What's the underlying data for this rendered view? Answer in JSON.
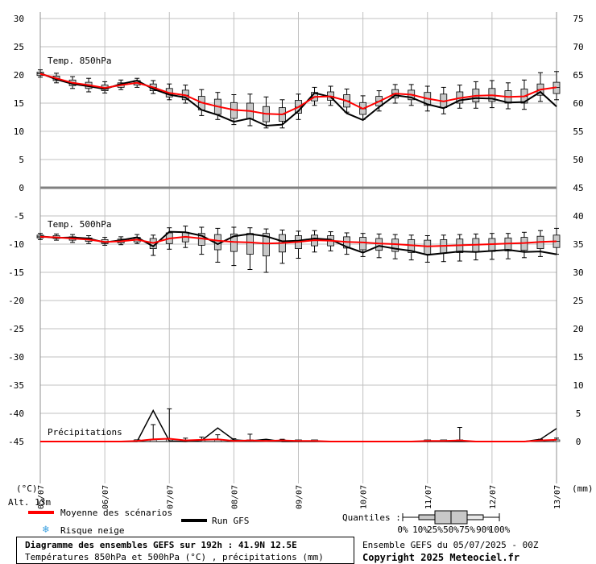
{
  "chart_data": {
    "type": "boxplot",
    "dates": [
      "05/07",
      "06/07",
      "07/07",
      "08/07",
      "09/07",
      "10/07",
      "11/07",
      "12/07",
      "13/07"
    ],
    "left_axis_ticks": [
      30,
      25,
      20,
      15,
      10,
      5,
      0,
      -5,
      -10,
      -15,
      -20,
      -25,
      -30,
      -35,
      -40,
      -45
    ],
    "right_axis_ticks_upper": [
      75,
      70,
      65,
      60,
      55,
      50,
      45
    ],
    "right_axis_ticks_lower": [
      40,
      35,
      30,
      25,
      20,
      15,
      10,
      5,
      0
    ],
    "left_unit": "(°C)",
    "right_unit": "(mm)",
    "altitude": "Alt. 13m",
    "panels": {
      "t850": {
        "label": "Temp. 850hPa",
        "hours": [
          0,
          6,
          12,
          18,
          24,
          30,
          36,
          42,
          48,
          54,
          60,
          66,
          72,
          78,
          84,
          90,
          96,
          102,
          108,
          114,
          120,
          126,
          132,
          138,
          144,
          150,
          156,
          162,
          168,
          174,
          180,
          186,
          192
        ],
        "mean": [
          20.2,
          19.4,
          18.6,
          18.2,
          17.7,
          18.2,
          18.6,
          17.8,
          16.8,
          16.4,
          15.1,
          14.4,
          13.8,
          13.6,
          13.1,
          13.0,
          14.3,
          16.1,
          16.2,
          15.4,
          14.0,
          15.3,
          16.7,
          16.5,
          15.8,
          15.3,
          15.9,
          16.3,
          16.4,
          16.1,
          16.2,
          17.4,
          17.8
        ],
        "gfs": [
          20.3,
          19.2,
          18.4,
          18.0,
          17.5,
          18.4,
          19.0,
          17.5,
          16.5,
          16.0,
          13.8,
          12.9,
          11.7,
          12.3,
          11.0,
          11.2,
          13.6,
          16.8,
          16.1,
          13.2,
          12.0,
          14.3,
          16.4,
          16.0,
          14.8,
          14.1,
          15.5,
          15.9,
          15.8,
          15.1,
          15.2,
          17.0,
          14.4
        ],
        "q10": [
          19.6,
          18.6,
          17.6,
          17.0,
          16.8,
          17.4,
          17.8,
          16.7,
          15.6,
          15.0,
          12.8,
          12.1,
          11.2,
          11.0,
          10.6,
          10.6,
          12.1,
          14.6,
          14.6,
          13.4,
          12.1,
          13.6,
          15.0,
          14.6,
          13.6,
          13.1,
          14.1,
          14.1,
          14.2,
          14.0,
          13.9,
          15.3,
          15.6
        ],
        "q25": [
          19.9,
          19.0,
          18.1,
          17.6,
          17.2,
          17.8,
          18.2,
          17.2,
          16.1,
          15.6,
          13.8,
          13.0,
          12.3,
          12.2,
          11.7,
          11.8,
          13.2,
          15.4,
          15.5,
          14.3,
          13.0,
          14.5,
          15.9,
          15.6,
          14.6,
          14.2,
          15.0,
          15.2,
          15.3,
          15.0,
          15.0,
          16.4,
          16.7
        ],
        "q75": [
          20.5,
          19.8,
          19.1,
          18.7,
          18.2,
          18.6,
          19.0,
          18.4,
          17.6,
          17.3,
          16.2,
          15.7,
          15.1,
          15.0,
          14.4,
          14.2,
          15.5,
          16.9,
          17.0,
          16.5,
          15.1,
          16.2,
          17.4,
          17.3,
          16.9,
          16.6,
          17.0,
          17.5,
          17.6,
          17.2,
          17.5,
          18.4,
          18.7
        ],
        "q90": [
          20.9,
          20.3,
          19.7,
          19.4,
          18.8,
          19.1,
          19.4,
          19.0,
          18.4,
          18.2,
          17.4,
          16.9,
          16.5,
          16.6,
          16.1,
          15.6,
          16.6,
          17.8,
          18.0,
          17.5,
          16.3,
          17.2,
          18.3,
          18.3,
          18.0,
          17.8,
          18.2,
          18.8,
          19.0,
          18.6,
          19.1,
          20.4,
          20.6
        ]
      },
      "t500": {
        "label": "Temp. 500hPa",
        "hours": [
          0,
          6,
          12,
          18,
          24,
          30,
          36,
          42,
          48,
          54,
          60,
          66,
          72,
          78,
          84,
          90,
          96,
          102,
          108,
          114,
          120,
          126,
          132,
          138,
          144,
          150,
          156,
          162,
          168,
          174,
          180,
          186,
          192
        ],
        "mean": [
          -8.7,
          -8.8,
          -9.0,
          -9.2,
          -9.6,
          -9.5,
          -9.2,
          -9.8,
          -9.0,
          -8.7,
          -9.0,
          -9.4,
          -9.6,
          -9.7,
          -9.9,
          -9.8,
          -9.6,
          -9.3,
          -9.4,
          -9.6,
          -9.7,
          -9.9,
          -10.0,
          -10.2,
          -10.4,
          -10.3,
          -10.2,
          -10.1,
          -10.0,
          -9.9,
          -9.8,
          -9.6,
          -9.5
        ],
        "gfs": [
          -8.6,
          -8.9,
          -8.8,
          -9.0,
          -9.7,
          -9.3,
          -8.8,
          -10.4,
          -7.8,
          -7.9,
          -8.5,
          -10.0,
          -8.6,
          -8.2,
          -8.6,
          -9.5,
          -9.4,
          -9.0,
          -9.2,
          -10.5,
          -11.5,
          -10.3,
          -10.8,
          -11.2,
          -11.9,
          -11.6,
          -11.3,
          -11.4,
          -11.2,
          -11.0,
          -11.4,
          -11.3,
          -11.8
        ],
        "q10": [
          -9.2,
          -9.3,
          -9.7,
          -9.9,
          -10.2,
          -10.1,
          -9.9,
          -12.0,
          -10.9,
          -10.6,
          -11.8,
          -13.2,
          -13.8,
          -14.5,
          -15.0,
          -13.4,
          -12.5,
          -11.4,
          -11.2,
          -11.8,
          -12.2,
          -12.4,
          -12.6,
          -12.8,
          -13.2,
          -13.1,
          -13.0,
          -12.8,
          -12.7,
          -12.6,
          -12.4,
          -12.2,
          -11.8
        ],
        "q25": [
          -8.9,
          -9.0,
          -9.3,
          -9.5,
          -9.9,
          -9.8,
          -9.6,
          -10.8,
          -9.9,
          -9.6,
          -10.2,
          -11.0,
          -11.3,
          -11.8,
          -12.1,
          -11.4,
          -10.8,
          -10.3,
          -10.3,
          -10.7,
          -11.0,
          -11.1,
          -11.3,
          -11.5,
          -11.8,
          -11.6,
          -11.5,
          -11.4,
          -11.3,
          -11.2,
          -11.1,
          -10.8,
          -10.6
        ],
        "q75": [
          -8.4,
          -8.5,
          -8.7,
          -8.9,
          -9.2,
          -9.1,
          -8.8,
          -9.0,
          -8.0,
          -7.9,
          -8.1,
          -8.3,
          -8.2,
          -8.1,
          -8.1,
          -8.3,
          -8.5,
          -8.4,
          -8.5,
          -8.7,
          -8.8,
          -9.0,
          -9.1,
          -9.2,
          -9.3,
          -9.2,
          -9.1,
          -9.0,
          -9.0,
          -8.9,
          -8.8,
          -8.6,
          -8.4
        ],
        "q90": [
          -8.1,
          -8.2,
          -8.3,
          -8.5,
          -8.8,
          -8.7,
          -8.3,
          -8.4,
          -7.1,
          -6.8,
          -7.0,
          -7.2,
          -7.0,
          -7.1,
          -7.3,
          -7.5,
          -7.7,
          -7.6,
          -7.8,
          -8.0,
          -8.1,
          -8.2,
          -8.3,
          -8.4,
          -8.5,
          -8.4,
          -8.3,
          -8.2,
          -8.1,
          -8.1,
          -7.9,
          -7.6,
          -7.2
        ]
      },
      "precip": {
        "label": "Précipitations",
        "hours": [
          0,
          6,
          12,
          18,
          24,
          30,
          36,
          42,
          48,
          54,
          60,
          66,
          72,
          78,
          84,
          90,
          96,
          102,
          108,
          114,
          120,
          126,
          132,
          138,
          144,
          150,
          156,
          162,
          168,
          174,
          180,
          186,
          192
        ],
        "mean": [
          0,
          0,
          0,
          0,
          0,
          0,
          0.1,
          0.4,
          0.5,
          0.2,
          0.3,
          0.4,
          0.1,
          0.2,
          0.1,
          0.2,
          0.1,
          0.1,
          0,
          0,
          0,
          0,
          0,
          0,
          0.1,
          0.1,
          0.2,
          0,
          0,
          0,
          0,
          0.2,
          0.3
        ],
        "gfs": [
          0,
          0,
          0,
          0,
          0,
          0,
          0,
          5.5,
          0.1,
          0,
          0.2,
          2.4,
          0.3,
          0.1,
          0.4,
          0,
          0,
          0,
          0,
          0,
          0,
          0,
          0,
          0,
          0,
          0,
          0,
          0,
          0,
          0,
          0,
          0.4,
          2.3
        ],
        "q90": [
          0,
          0,
          0,
          0,
          0,
          0,
          0.3,
          3.0,
          5.8,
          0.6,
          0.8,
          1.2,
          0.5,
          1.3,
          0.3,
          0.4,
          0.2,
          0.1,
          0,
          0,
          0,
          0,
          0,
          0,
          0.2,
          0.2,
          2.5,
          0,
          0,
          0,
          0,
          0.4,
          0.6
        ]
      }
    }
  },
  "legend": {
    "mean_label": "Moyenne des scénarios",
    "gfs_label": "Run GFS",
    "snow_label": "Risque neige",
    "quantiles_label": "Quantiles :",
    "quantile_ticks": [
      "0%",
      "10%",
      "25%",
      "50%",
      "75%",
      "90%",
      "100%"
    ]
  },
  "footer": {
    "title": "Diagramme des ensembles GEFS sur 192h : 41.9N 12.5E",
    "subtitle": "Températures 850hPa et 500hPa (°C) , précipitations (mm)",
    "run": "Ensemble GEFS du 05/07/2025 - 00Z",
    "copyright": "Copyright 2025 Meteociel.fr"
  },
  "colors": {
    "mean": "#ff0000",
    "gfs": "#000000",
    "box_fill": "#c8c8c8",
    "grid": "#c0c0c0",
    "snow": "#3aa0e0"
  }
}
